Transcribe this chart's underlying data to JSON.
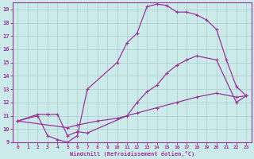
{
  "xlabel": "Windchill (Refroidissement éolien,°C)",
  "xlim": [
    -0.5,
    23.5
  ],
  "ylim": [
    9,
    19.5
  ],
  "xticks": [
    0,
    1,
    2,
    3,
    4,
    5,
    6,
    7,
    8,
    9,
    10,
    11,
    12,
    13,
    14,
    15,
    16,
    17,
    18,
    19,
    20,
    21,
    22,
    23
  ],
  "yticks": [
    9,
    10,
    11,
    12,
    13,
    14,
    15,
    16,
    17,
    18,
    19
  ],
  "bg_color": "#cceaea",
  "line_color": "#993399",
  "grid_color": "#aacccc",
  "line1_x": [
    0,
    2,
    3,
    4,
    5,
    6,
    7,
    11,
    12,
    13,
    14,
    15,
    16,
    17,
    18,
    20,
    22,
    23
  ],
  "line1_y": [
    10.6,
    11.1,
    11.1,
    11.1,
    9.5,
    9.8,
    9.7,
    11.0,
    12.0,
    12.8,
    13.3,
    14.2,
    14.8,
    15.2,
    15.5,
    15.2,
    12.0,
    12.5
  ],
  "line2_x": [
    0,
    2,
    3,
    4,
    5,
    6,
    7,
    10,
    11,
    12,
    13,
    14,
    15,
    16,
    17,
    18,
    19,
    20,
    21,
    22,
    23
  ],
  "line2_y": [
    10.6,
    11.0,
    9.5,
    9.2,
    9.0,
    9.5,
    13.0,
    15.0,
    16.5,
    17.2,
    19.2,
    19.4,
    19.3,
    18.8,
    18.8,
    18.6,
    18.2,
    17.5,
    15.2,
    13.2,
    12.5
  ],
  "line3_x": [
    0,
    5,
    6,
    8,
    10,
    12,
    14,
    16,
    18,
    20,
    22,
    23
  ],
  "line3_y": [
    10.6,
    10.1,
    10.3,
    10.6,
    10.8,
    11.2,
    11.6,
    12.0,
    12.4,
    12.7,
    12.4,
    12.5
  ]
}
